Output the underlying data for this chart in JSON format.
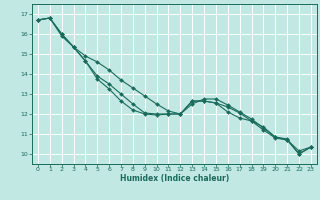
{
  "xlabel": "Humidex (Indice chaleur)",
  "bg_color": "#c2e8e4",
  "grid_color": "#ffffff",
  "line_color": "#1a6b5a",
  "xlim": [
    -0.5,
    23.5
  ],
  "ylim": [
    9.5,
    17.5
  ],
  "xticks": [
    0,
    1,
    2,
    3,
    4,
    5,
    6,
    7,
    8,
    9,
    10,
    11,
    12,
    13,
    14,
    15,
    16,
    17,
    18,
    19,
    20,
    21,
    22,
    23
  ],
  "yticks": [
    10,
    11,
    12,
    13,
    14,
    15,
    16,
    17
  ],
  "line1_x": [
    0,
    1,
    2,
    3,
    4,
    5,
    6,
    7,
    8,
    9,
    10,
    11,
    12,
    13,
    14,
    15,
    16,
    17,
    18,
    19,
    20,
    21,
    22,
    23
  ],
  "line1_y": [
    16.7,
    16.8,
    15.9,
    15.35,
    14.65,
    13.75,
    13.25,
    12.65,
    12.2,
    12.0,
    11.95,
    12.0,
    12.0,
    12.65,
    12.65,
    12.55,
    12.35,
    12.05,
    11.65,
    11.35,
    10.85,
    10.75,
    10.0,
    10.35
  ],
  "line2_x": [
    0,
    1,
    2,
    3,
    4,
    5,
    6,
    7,
    8,
    9,
    10,
    11,
    12,
    13,
    14,
    15,
    16,
    17,
    18,
    19,
    20,
    21,
    22,
    23
  ],
  "line2_y": [
    16.7,
    16.8,
    16.0,
    15.35,
    14.9,
    14.6,
    14.2,
    13.7,
    13.3,
    12.9,
    12.5,
    12.15,
    12.0,
    12.5,
    12.75,
    12.75,
    12.45,
    12.1,
    11.75,
    11.3,
    10.85,
    10.7,
    10.15,
    10.35
  ],
  "line3_x": [
    0,
    1,
    2,
    3,
    4,
    5,
    6,
    7,
    8,
    9,
    10,
    11,
    12,
    13,
    14,
    15,
    16,
    17,
    18,
    19,
    20,
    21,
    22,
    23
  ],
  "line3_y": [
    16.7,
    16.8,
    16.0,
    15.35,
    14.65,
    13.9,
    13.5,
    13.0,
    12.5,
    12.05,
    12.0,
    12.0,
    12.0,
    12.65,
    12.65,
    12.55,
    12.1,
    11.8,
    11.65,
    11.2,
    10.8,
    10.7,
    10.0,
    10.35
  ]
}
